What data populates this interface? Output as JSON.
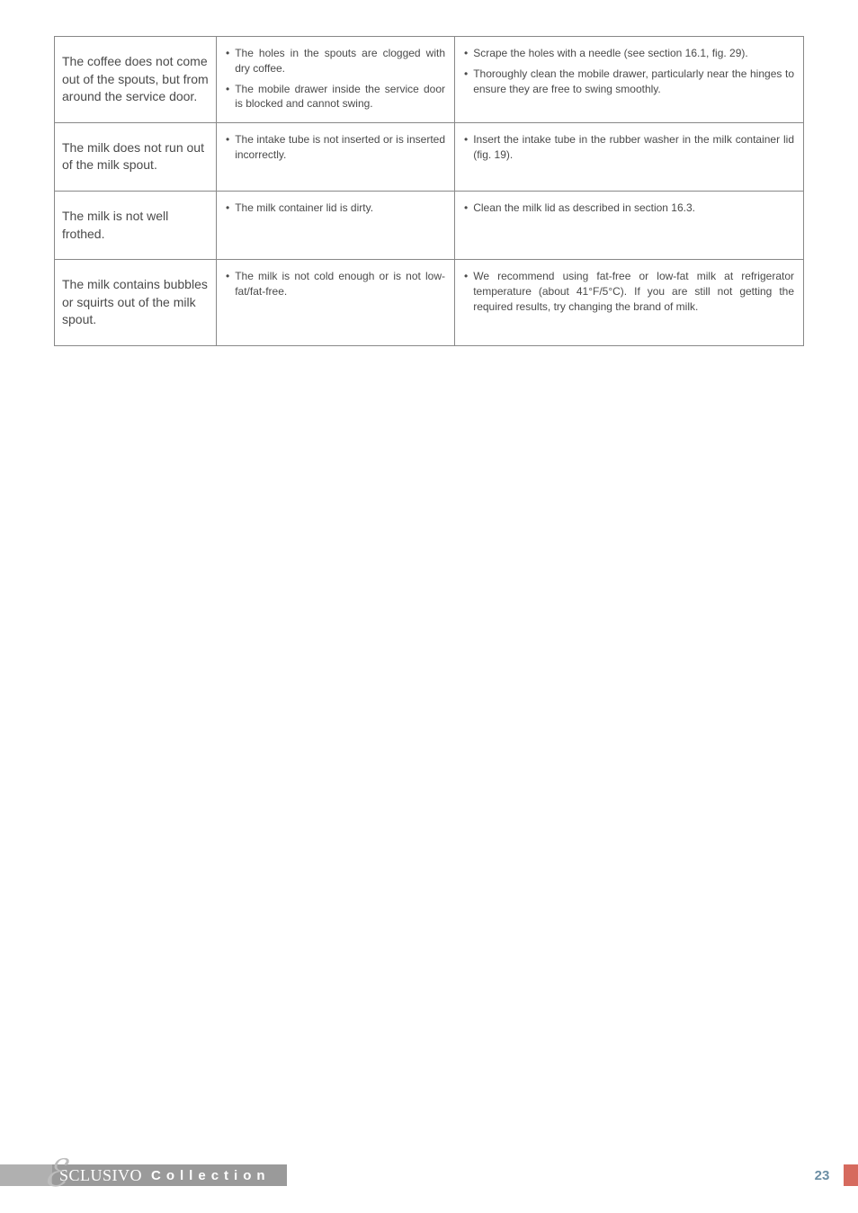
{
  "table": {
    "rows": [
      {
        "problem": "The coffee does not come out of the spouts, but from around the service door.",
        "causes": [
          "The holes in the spouts are clogged with dry coffee.",
          "The mobile drawer inside the service door is blocked and cannot swing."
        ],
        "solutions": [
          "Scrape the holes with a needle (see section 16.1, fig. 29).",
          "Thoroughly clean the mobile drawer, particularly near the hinges to ensure they are free to swing smoothly."
        ]
      },
      {
        "problem": "The milk does not run out of the milk spout.",
        "causes": [
          "The intake tube is not inserted or is inserted incorrectly."
        ],
        "solutions": [
          "Insert the intake tube in the rubber washer in the milk container lid (fig. 19)."
        ]
      },
      {
        "problem": "The milk is not well frothed.",
        "causes": [
          "The milk container lid is dirty."
        ],
        "solutions": [
          "Clean the milk lid as described in section 16.3."
        ]
      },
      {
        "problem": "The milk contains bubbles or squirts out of the milk spout.",
        "causes": [
          "The milk is not cold enough or is not low-fat/fat-free."
        ],
        "solutions": [
          "We recommend using fat-free or low-fat milk at refrigerator temperature (about 41°F/5°C). If you are still not getting the required results, try changing the brand of milk."
        ]
      }
    ]
  },
  "footer": {
    "brand_sclusivo": "SCLUSIVO",
    "brand_collection": "Collection",
    "page_number": "23"
  },
  "colors": {
    "border": "#888888",
    "text": "#4a4a4a",
    "footer_gray_light": "#b0b0b0",
    "footer_gray": "#9a9a9a",
    "footer_red": "#d66a5e",
    "page_num": "#6b8ea4"
  }
}
